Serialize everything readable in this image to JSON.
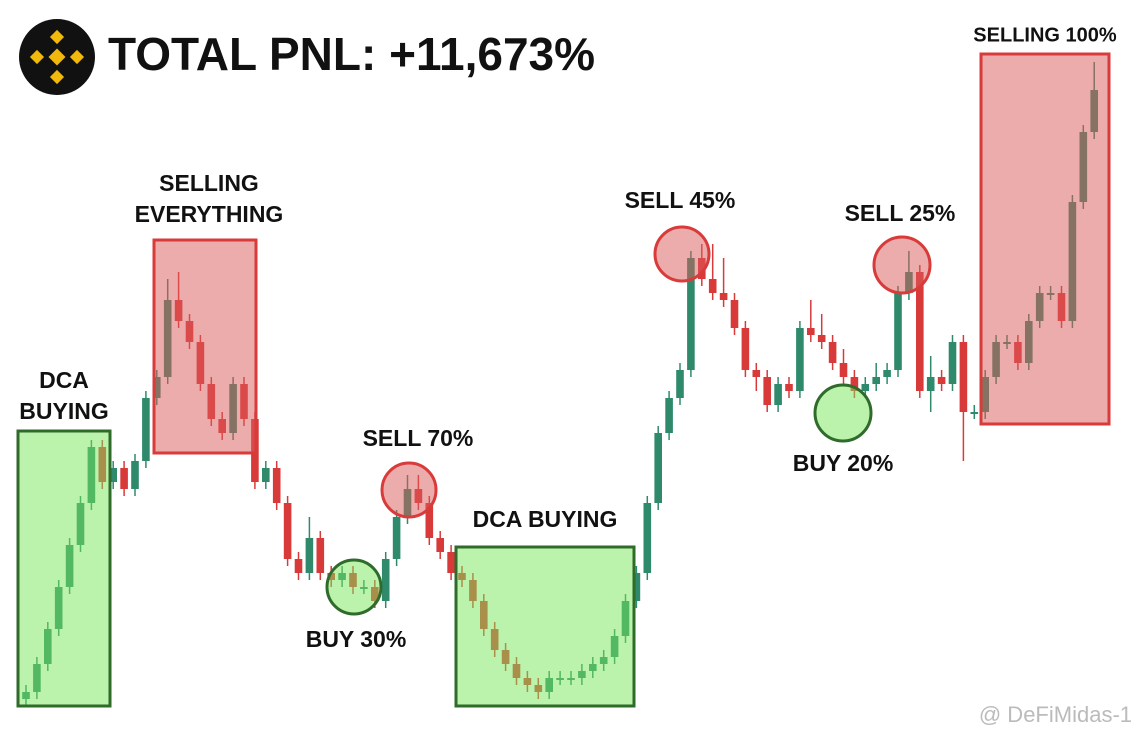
{
  "chart_data": {
    "type": "candlestick",
    "title": "TOTAL PNL: +11,673%",
    "watermark": "@ DeFiMidas-1",
    "up_color": "#2f8a6b",
    "down_color": "#d83a3a",
    "ylim": [
      0,
      100
    ],
    "open": [
      3,
      4,
      8,
      13,
      19,
      25,
      31,
      39,
      34,
      36,
      33,
      37,
      46,
      49,
      60,
      57,
      54,
      48,
      43,
      41,
      48,
      43,
      34,
      36,
      31,
      23,
      21,
      26,
      21,
      20,
      21,
      19,
      19,
      17,
      23,
      29,
      33,
      31,
      26,
      24,
      21,
      20,
      17,
      13,
      10,
      8,
      6,
      5,
      4,
      6,
      6,
      6,
      7,
      8,
      9,
      12,
      17,
      21,
      31,
      41,
      46,
      50,
      66,
      63,
      61,
      60,
      56,
      50,
      49,
      45,
      48,
      47,
      56,
      55,
      54,
      51,
      49,
      47,
      48,
      49,
      50,
      61,
      64,
      47,
      49,
      48,
      54,
      44,
      44,
      49,
      54,
      54,
      51,
      57,
      61,
      61,
      57,
      74,
      84
    ],
    "high": [
      5,
      9,
      14,
      20,
      26,
      32,
      40,
      40,
      37,
      37,
      38,
      47,
      50,
      63,
      64,
      58,
      55,
      49,
      44,
      49,
      49,
      44,
      37,
      37,
      32,
      24,
      29,
      27,
      22,
      22,
      22,
      20,
      20,
      24,
      30,
      35,
      35,
      32,
      27,
      25,
      22,
      21,
      18,
      14,
      11,
      9,
      7,
      6,
      7,
      7,
      7,
      8,
      9,
      10,
      13,
      18,
      22,
      32,
      42,
      47,
      51,
      67,
      68,
      68,
      66,
      61,
      57,
      51,
      50,
      49,
      49,
      57,
      60,
      58,
      55,
      53,
      50,
      49,
      51,
      51,
      62,
      67,
      65,
      52,
      50,
      55,
      55,
      45,
      50,
      55,
      55,
      55,
      58,
      62,
      62,
      62,
      75,
      85,
      94
    ],
    "low": [
      2,
      3,
      7,
      12,
      18,
      24,
      30,
      33,
      33,
      32,
      32,
      36,
      45,
      48,
      56,
      53,
      47,
      42,
      40,
      40,
      42,
      33,
      33,
      30,
      22,
      20,
      20,
      20,
      19,
      19,
      18,
      18,
      16,
      16,
      22,
      28,
      30,
      25,
      23,
      20,
      19,
      16,
      12,
      9,
      7,
      5,
      4,
      3,
      3,
      5,
      5,
      5,
      6,
      7,
      8,
      11,
      16,
      20,
      30,
      40,
      45,
      49,
      62,
      60,
      59,
      55,
      49,
      47,
      44,
      44,
      46,
      46,
      54,
      53,
      50,
      48,
      46,
      46,
      47,
      48,
      49,
      60,
      46,
      44,
      47,
      47,
      37,
      43,
      43,
      48,
      53,
      50,
      50,
      56,
      60,
      56,
      56,
      73,
      83
    ],
    "close": [
      4,
      8,
      13,
      19,
      25,
      31,
      39,
      34,
      36,
      33,
      37,
      46,
      49,
      60,
      57,
      54,
      48,
      43,
      41,
      48,
      43,
      34,
      36,
      31,
      23,
      21,
      26,
      21,
      20,
      21,
      19,
      19,
      17,
      23,
      29,
      33,
      31,
      26,
      24,
      21,
      20,
      17,
      13,
      10,
      8,
      6,
      5,
      4,
      6,
      6,
      6,
      7,
      8,
      9,
      12,
      17,
      21,
      31,
      41,
      46,
      50,
      66,
      63,
      61,
      60,
      56,
      50,
      49,
      45,
      48,
      47,
      56,
      55,
      54,
      51,
      49,
      47,
      48,
      49,
      50,
      61,
      64,
      47,
      49,
      48,
      54,
      44,
      44,
      49,
      54,
      54,
      51,
      57,
      61,
      61,
      57,
      74,
      84,
      90
    ],
    "annotations": [
      {
        "lines": [
          "DCA",
          "BUYING"
        ]
      },
      {
        "lines": [
          "SELLING",
          "EVERYTHING"
        ]
      },
      {
        "lines": [
          "SELL 70%"
        ]
      },
      {
        "lines": [
          "BUY 30%"
        ]
      },
      {
        "lines": [
          "DCA BUYING"
        ]
      },
      {
        "lines": [
          "SELL 45%"
        ]
      },
      {
        "lines": [
          "SELL 25%"
        ]
      },
      {
        "lines": [
          "BUY 20%"
        ]
      },
      {
        "lines": [
          "SELLING 100%"
        ]
      }
    ]
  }
}
